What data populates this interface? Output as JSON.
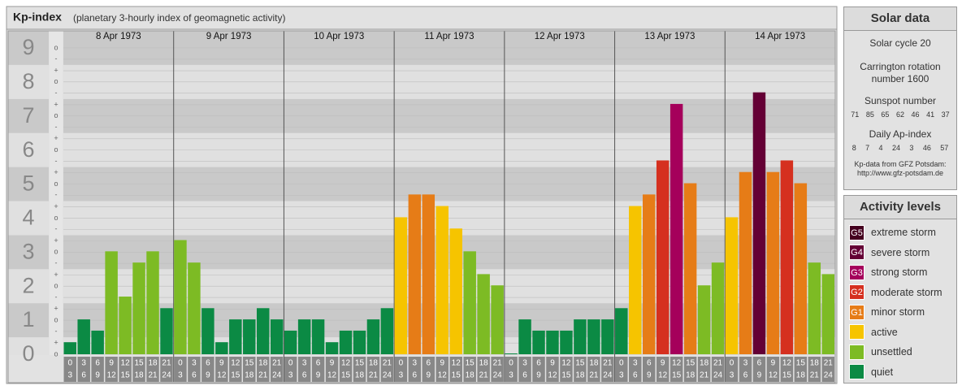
{
  "chart_data": {
    "type": "bar",
    "title": "Kp-index",
    "subtitle": "(planetary 3-hourly index of geomagnetic activity)",
    "days": [
      "8 Apr 1973",
      "9 Apr 1973",
      "10 Apr 1973",
      "11 Apr 1973",
      "12 Apr 1973",
      "13 Apr 1973",
      "14 Apr 1973"
    ],
    "hour_labels": [
      [
        "0",
        "3"
      ],
      [
        "3",
        "6"
      ],
      [
        "6",
        "9"
      ],
      [
        "9",
        "12"
      ],
      [
        "12",
        "15"
      ],
      [
        "15",
        "18"
      ],
      [
        "18",
        "21"
      ],
      [
        "21",
        "24"
      ]
    ],
    "values": [
      0.33,
      1,
      0.67,
      3,
      1.67,
      2.67,
      3,
      1.33,
      3.33,
      2.67,
      1.33,
      0.33,
      1,
      1,
      1.33,
      1,
      0.67,
      1,
      1,
      0.33,
      0.67,
      0.67,
      1,
      1.33,
      4,
      4.67,
      4.67,
      4.33,
      3.67,
      3,
      2.33,
      2,
      0,
      1,
      0.67,
      0.67,
      0.67,
      1,
      1,
      1,
      1.33,
      4.33,
      4.67,
      5.67,
      7.33,
      5,
      2,
      2.67,
      4,
      5.33,
      7.67,
      5.33,
      5.67,
      5,
      2.67,
      2.33
    ],
    "colors": [
      "#0b8a44",
      "#0b8a44",
      "#0b8a44",
      "#7dbb24",
      "#7dbb24",
      "#7dbb24",
      "#7dbb24",
      "#0b8a44",
      "#7dbb24",
      "#7dbb24",
      "#0b8a44",
      "#0b8a44",
      "#0b8a44",
      "#0b8a44",
      "#0b8a44",
      "#0b8a44",
      "#0b8a44",
      "#0b8a44",
      "#0b8a44",
      "#0b8a44",
      "#0b8a44",
      "#0b8a44",
      "#0b8a44",
      "#0b8a44",
      "#f6c400",
      "#e67c17",
      "#e67c17",
      "#f6c400",
      "#f6c400",
      "#7dbb24",
      "#7dbb24",
      "#7dbb24",
      "#0b8a44",
      "#0b8a44",
      "#0b8a44",
      "#0b8a44",
      "#0b8a44",
      "#0b8a44",
      "#0b8a44",
      "#0b8a44",
      "#0b8a44",
      "#f6c400",
      "#e67c17",
      "#d5301f",
      "#a5005b",
      "#e67c17",
      "#7dbb24",
      "#7dbb24",
      "#f6c400",
      "#e67c17",
      "#640035",
      "#e67c17",
      "#d5301f",
      "#e67c17",
      "#7dbb24",
      "#7dbb24"
    ],
    "ylim": [
      0,
      9.5
    ],
    "yticks": [
      0,
      1,
      2,
      3,
      4,
      5,
      6,
      7,
      8,
      9
    ],
    "minor_ticks": [
      {
        "value": 0,
        "label": "o"
      },
      {
        "value": 0.33,
        "label": "+"
      },
      {
        "value": 0.67,
        "label": "-"
      },
      {
        "value": 1,
        "label": "o"
      },
      {
        "value": 1.33,
        "label": "+"
      },
      {
        "value": 1.67,
        "label": "-"
      },
      {
        "value": 2,
        "label": "o"
      },
      {
        "value": 2.33,
        "label": "+"
      },
      {
        "value": 2.67,
        "label": "-"
      },
      {
        "value": 3,
        "label": "o"
      },
      {
        "value": 3.33,
        "label": "+"
      },
      {
        "value": 3.67,
        "label": "-"
      },
      {
        "value": 4,
        "label": "o"
      },
      {
        "value": 4.33,
        "label": "+"
      },
      {
        "value": 4.67,
        "label": "-"
      },
      {
        "value": 5,
        "label": "o"
      },
      {
        "value": 5.33,
        "label": "+"
      },
      {
        "value": 5.67,
        "label": "-"
      },
      {
        "value": 6,
        "label": "o"
      },
      {
        "value": 6.33,
        "label": "+"
      },
      {
        "value": 6.67,
        "label": "-"
      },
      {
        "value": 7,
        "label": "o"
      },
      {
        "value": 7.33,
        "label": "+"
      },
      {
        "value": 7.67,
        "label": "-"
      },
      {
        "value": 8,
        "label": "o"
      },
      {
        "value": 8.33,
        "label": "+"
      },
      {
        "value": 8.67,
        "label": "-"
      },
      {
        "value": 9,
        "label": "o"
      }
    ],
    "grid": true
  },
  "solar_data": {
    "title": "Solar data",
    "solar_cycle": "Solar cycle 20",
    "carrington": [
      "Carrington rotation",
      "number 1600"
    ],
    "sunspot_title": "Sunspot number",
    "sunspot_numbers": [
      "71",
      "85",
      "65",
      "62",
      "46",
      "41",
      "37"
    ],
    "ap_title": "Daily Ap-index",
    "ap_values": [
      "8",
      "7",
      "4",
      "24",
      "3",
      "46",
      "57"
    ],
    "source": [
      "Kp-data from GFZ Potsdam:",
      "http://www.gfz-potsdam.de"
    ]
  },
  "activity_levels": {
    "title": "Activity levels",
    "items": [
      {
        "badge": "G5",
        "label": "extreme storm",
        "color": "#45001f"
      },
      {
        "badge": "G4",
        "label": "severe storm",
        "color": "#640035"
      },
      {
        "badge": "G3",
        "label": "strong storm",
        "color": "#a5005b"
      },
      {
        "badge": "G2",
        "label": "moderate storm",
        "color": "#d5301f"
      },
      {
        "badge": "G1",
        "label": "minor storm",
        "color": "#e67c17"
      },
      {
        "label": "active",
        "color": "#f6c400"
      },
      {
        "label": "unsettled",
        "color": "#7dbb24"
      },
      {
        "label": "quiet",
        "color": "#0b8a44"
      }
    ]
  }
}
